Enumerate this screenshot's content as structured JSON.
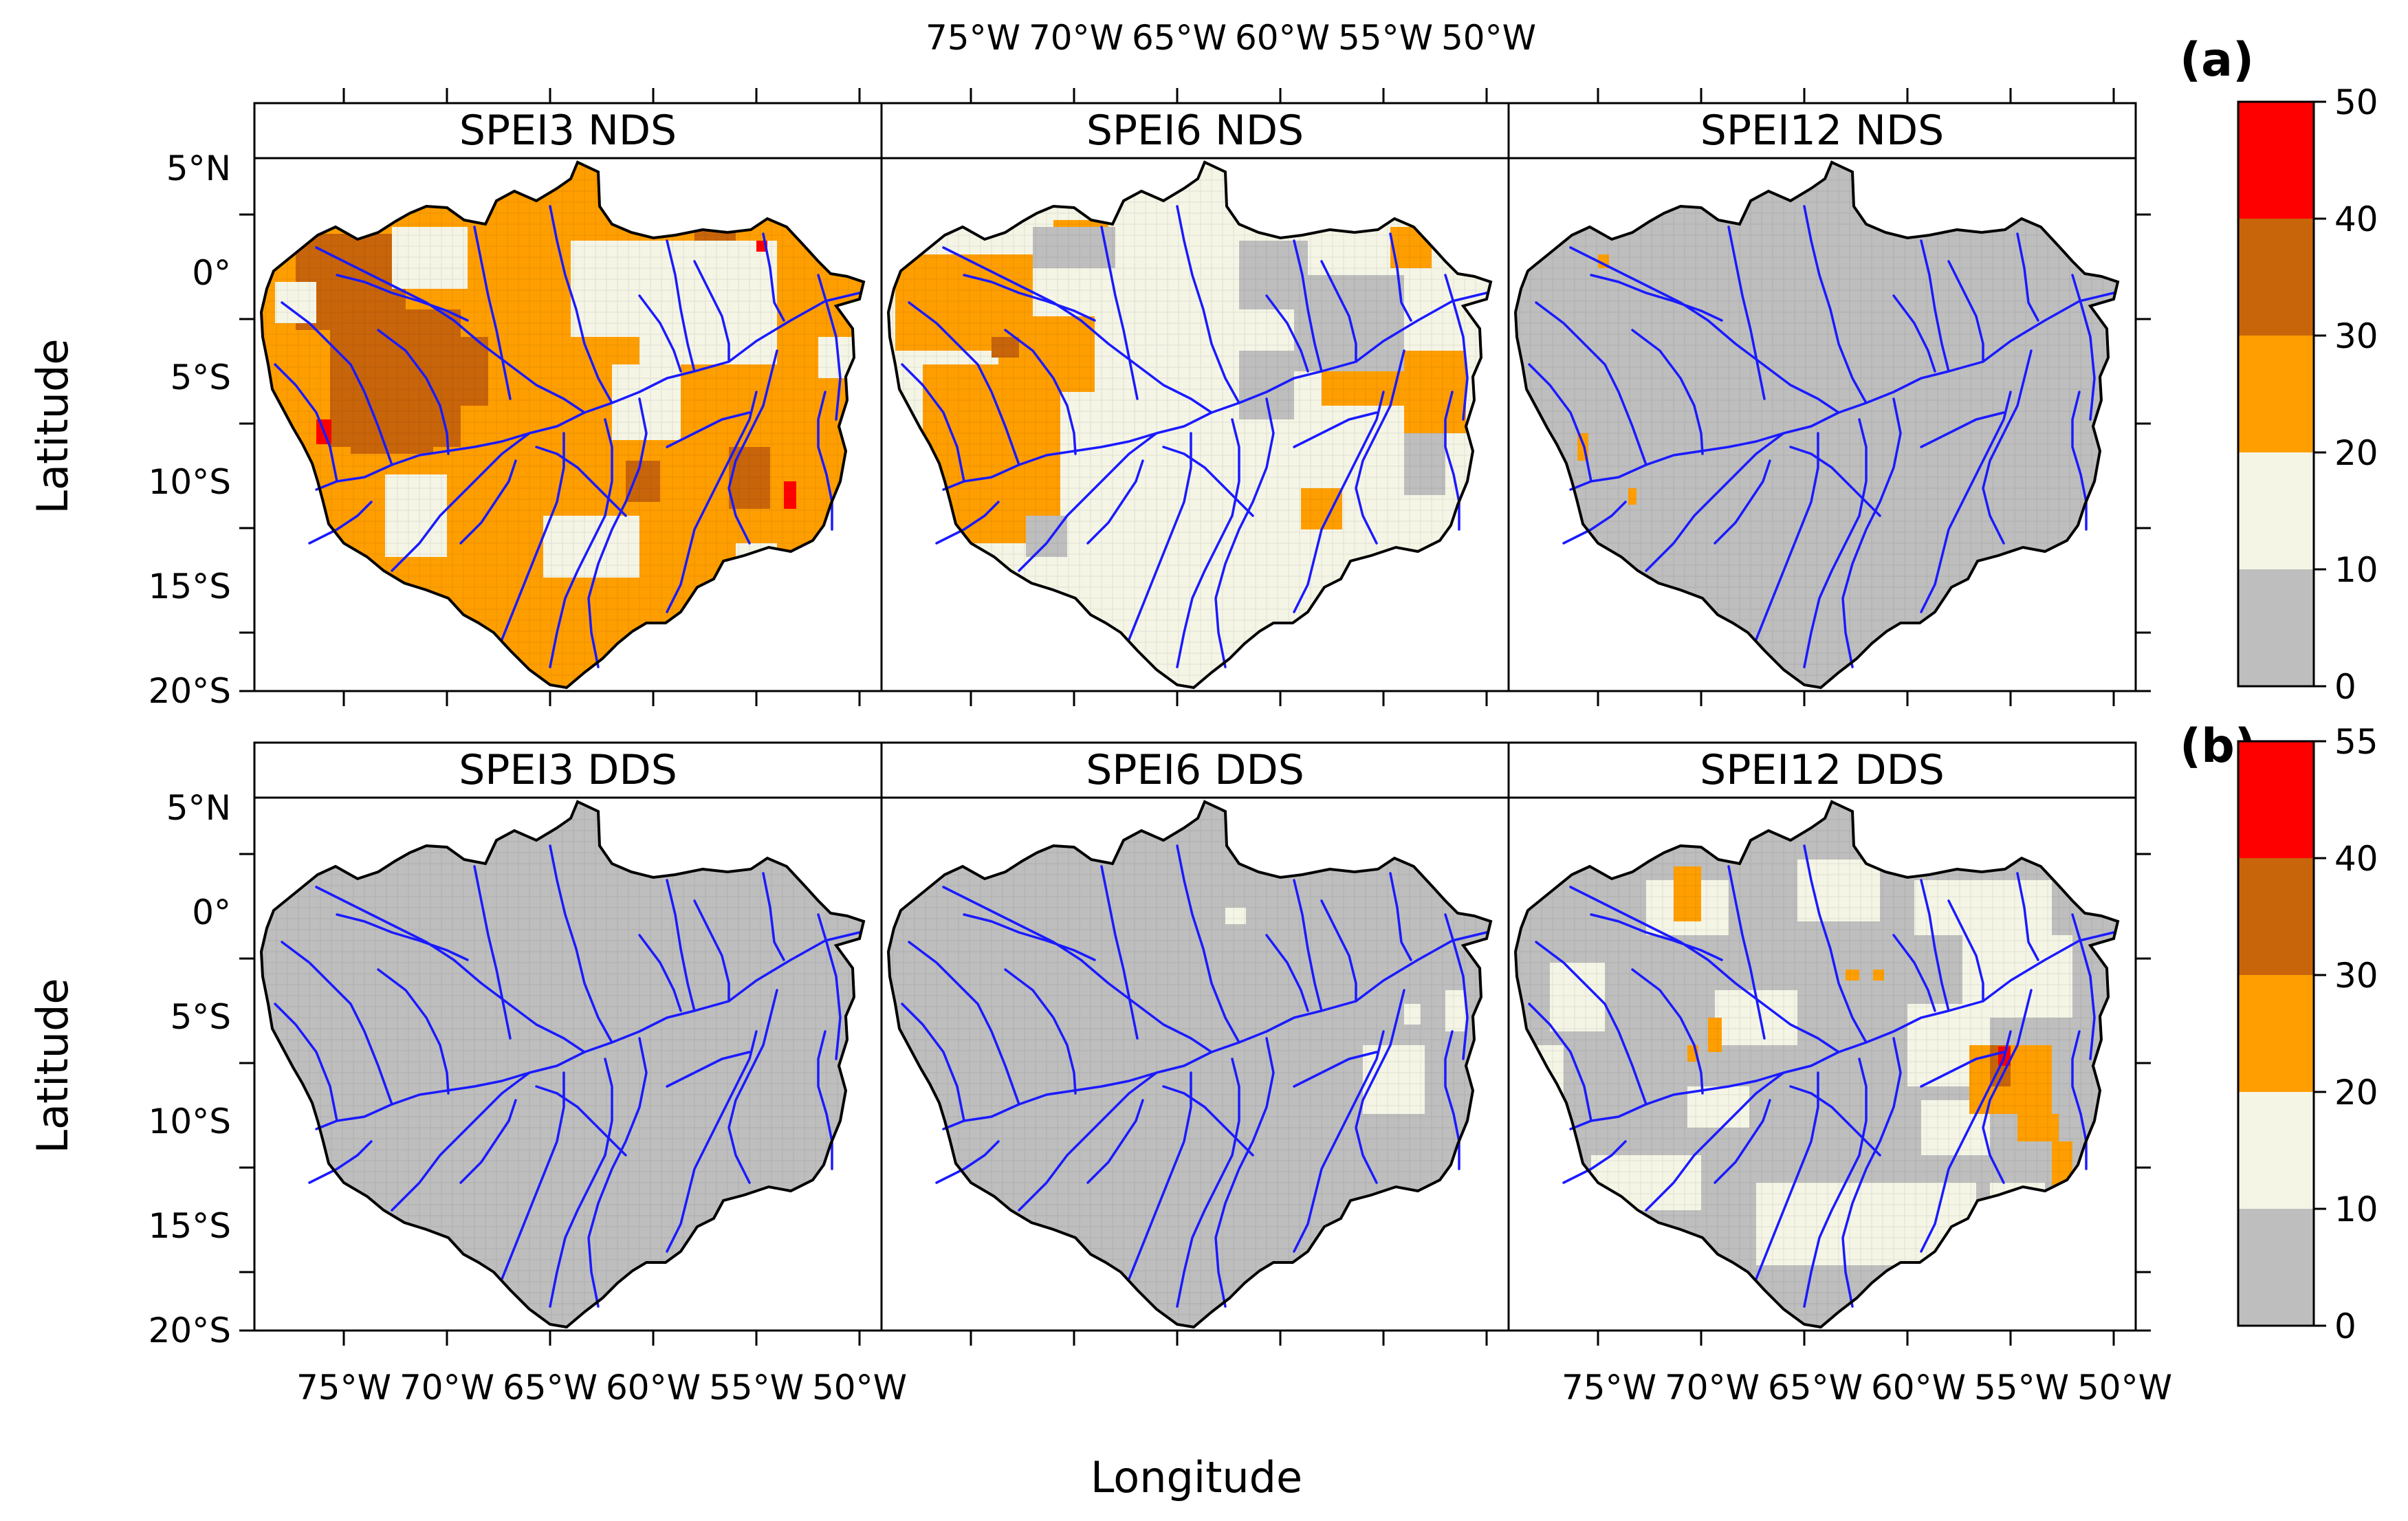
{
  "figure": {
    "panel_labels": {
      "a": "(a)",
      "b": "(b)"
    },
    "axes": {
      "xlabel": "Longitude",
      "ylabel": "Latitude",
      "lat_ticks": [
        "5°N",
        "0°",
        "5°S",
        "10°S",
        "15°S",
        "20°S"
      ],
      "lon_ticks": [
        "75°W",
        "70°W",
        "65°W",
        "60°W",
        "55°W",
        "50°W"
      ]
    },
    "panels": [
      {
        "title": "SPEI3  NDS",
        "dominant_class": "20-30"
      },
      {
        "title": "SPEI6  NDS",
        "dominant_class": "10-20"
      },
      {
        "title": "SPEI12  NDS",
        "dominant_class": "0-10"
      },
      {
        "title": "SPEI3  DDS",
        "dominant_class": "0-10"
      },
      {
        "title": "SPEI6  DDS",
        "dominant_class": "0-10"
      },
      {
        "title": "SPEI12  DDS",
        "dominant_class": "0-10"
      }
    ],
    "colorbar_a": {
      "ticks": [
        "50",
        "40",
        "30",
        "20",
        "10",
        "0"
      ],
      "classes": [
        {
          "range": "40-50",
          "color": "#ff0000"
        },
        {
          "range": "30-40",
          "color": "#c8650a"
        },
        {
          "range": "20-30",
          "color": "#ff9e00"
        },
        {
          "range": "10-20",
          "color": "#f5f5e6"
        },
        {
          "range": "0-10",
          "color": "#bebebe"
        }
      ]
    },
    "colorbar_b": {
      "ticks": [
        "55",
        "40",
        "30",
        "20",
        "10",
        "0"
      ],
      "classes": [
        {
          "range": "40-55",
          "color": "#ff0000"
        },
        {
          "range": "30-40",
          "color": "#c8650a"
        },
        {
          "range": "20-30",
          "color": "#ff9e00"
        },
        {
          "range": "10-20",
          "color": "#f5f5e6"
        },
        {
          "range": "0-10",
          "color": "#bebebe"
        }
      ]
    },
    "colors": {
      "river": "#1a1aff",
      "basin_outline": "#000000",
      "strip_bg": "#ffffff"
    }
  }
}
